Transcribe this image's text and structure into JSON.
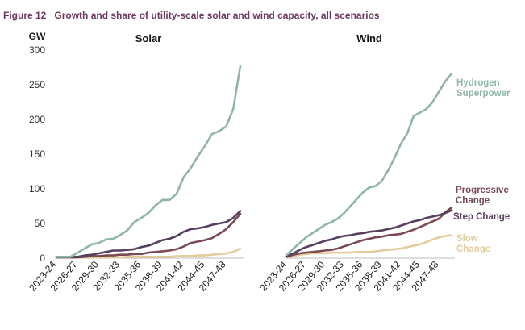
{
  "figure": {
    "number": "Figure 12",
    "title": "Growth and share of utility-scale solar and wind capacity, all scenarios"
  },
  "chart_data": [
    {
      "type": "line",
      "title": "Solar",
      "ylabel": "GW",
      "ylim": [
        0,
        300
      ],
      "yticks": [
        0,
        50,
        100,
        150,
        200,
        250,
        300
      ],
      "grid": false,
      "x": [
        "2023-24",
        "2024-25",
        "2025-26",
        "2026-27",
        "2027-28",
        "2028-29",
        "2029-30",
        "2030-31",
        "2031-32",
        "2032-33",
        "2033-34",
        "2034-35",
        "2035-36",
        "2036-37",
        "2037-38",
        "2038-39",
        "2039-40",
        "2040-41",
        "2041-42",
        "2042-43",
        "2043-44",
        "2044-45",
        "2045-46",
        "2046-47",
        "2047-48",
        "2048-49",
        "2049-50"
      ],
      "xtick_labels": [
        "2023-24",
        "2026-27",
        "2029-30",
        "2032-33",
        "2035-36",
        "2038-39",
        "2041-42",
        "2044-45",
        "2047-48"
      ],
      "series": [
        {
          "key": "hydrogen",
          "color": "#8fb5a8",
          "values": [
            2,
            2,
            2,
            8,
            14,
            20,
            22,
            27,
            28,
            33,
            40,
            52,
            58,
            65,
            76,
            84,
            84,
            93,
            117,
            130,
            147,
            162,
            179,
            183,
            190,
            215,
            277
          ]
        },
        {
          "key": "step",
          "color": "#55405e",
          "values": [
            2,
            2,
            2,
            2,
            4,
            5,
            7,
            9,
            11,
            11,
            12,
            13,
            16,
            18,
            22,
            26,
            28,
            32,
            38,
            42,
            43,
            45,
            48,
            50,
            52,
            58,
            68
          ]
        },
        {
          "key": "progressive",
          "color": "#7a4a55",
          "values": [
            1,
            1,
            1,
            1,
            2,
            3,
            3,
            4,
            4,
            5,
            5,
            6,
            6,
            8,
            9,
            10,
            11,
            13,
            17,
            22,
            24,
            26,
            29,
            35,
            42,
            52,
            64
          ]
        },
        {
          "key": "slow",
          "color": "#e2cc9a",
          "values": [
            1,
            1,
            1,
            1,
            1,
            1,
            1,
            1,
            1,
            1,
            2,
            2,
            2,
            2,
            2,
            2,
            2,
            3,
            3,
            3,
            4,
            4,
            5,
            6,
            7,
            9,
            14
          ]
        }
      ]
    },
    {
      "type": "line",
      "title": "Wind",
      "ylim": [
        0,
        300
      ],
      "grid": false,
      "x": [
        "2023-24",
        "2024-25",
        "2025-26",
        "2026-27",
        "2027-28",
        "2028-29",
        "2029-30",
        "2030-31",
        "2031-32",
        "2032-33",
        "2033-34",
        "2034-35",
        "2035-36",
        "2036-37",
        "2037-38",
        "2038-39",
        "2039-40",
        "2040-41",
        "2041-42",
        "2042-43",
        "2043-44",
        "2044-45",
        "2045-46",
        "2046-47",
        "2047-48",
        "2048-49",
        "2049-50"
      ],
      "xtick_labels": [
        "2023-24",
        "2026-27",
        "2029-30",
        "2032-33",
        "2035-36",
        "2038-39",
        "2041-42",
        "2044-45",
        "2047-48"
      ],
      "series": [
        {
          "name": "Hydrogen Superpower",
          "color": "#8fb5a8",
          "values": [
            5,
            14,
            22,
            30,
            36,
            42,
            48,
            52,
            57,
            65,
            75,
            85,
            95,
            102,
            104,
            112,
            127,
            145,
            165,
            180,
            205,
            210,
            215,
            225,
            240,
            255,
            266
          ]
        },
        {
          "name": "Step Change",
          "color": "#55405e",
          "values": [
            3,
            7,
            12,
            16,
            19,
            22,
            25,
            27,
            30,
            32,
            33,
            35,
            36,
            38,
            39,
            40,
            42,
            44,
            47,
            50,
            53,
            55,
            58,
            60,
            62,
            65,
            69
          ]
        },
        {
          "name": "Progressive Change",
          "color": "#7a4a55",
          "values": [
            2,
            5,
            7,
            8,
            9,
            10,
            11,
            12,
            14,
            17,
            20,
            23,
            26,
            28,
            30,
            31,
            33,
            34,
            35,
            38,
            41,
            45,
            49,
            53,
            57,
            66,
            73
          ]
        },
        {
          "name": "Slow Change",
          "color": "#e2cc9a",
          "values": [
            1,
            3,
            5,
            6,
            7,
            7,
            7,
            8,
            8,
            8,
            8,
            9,
            9,
            9,
            10,
            11,
            12,
            13,
            14,
            16,
            18,
            20,
            23,
            27,
            30,
            32,
            33
          ]
        }
      ]
    }
  ],
  "labels": {
    "hydrogen": [
      "Hydrogen",
      "Superpower"
    ],
    "progressive": [
      "Progressive",
      "Change"
    ],
    "step": [
      "Step Change"
    ],
    "slow": [
      "Slow",
      "Change"
    ]
  }
}
